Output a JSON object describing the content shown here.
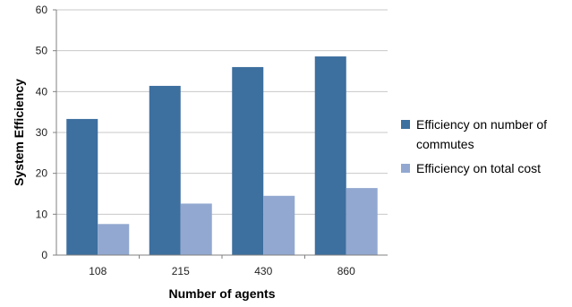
{
  "chart_data": {
    "type": "bar",
    "title": "",
    "xlabel": "Number of agents",
    "ylabel": "System Efficiency",
    "categories": [
      "108",
      "215",
      "430",
      "860"
    ],
    "series": [
      {
        "name": "Efficiency on number of commutes",
        "color": "#3D6F9F",
        "values": [
          33.3,
          41.4,
          46.0,
          48.6
        ]
      },
      {
        "name": "Efficiency on total cost",
        "color": "#92A8D0",
        "values": [
          7.6,
          12.6,
          14.5,
          16.4
        ]
      }
    ],
    "ylim": [
      0,
      60
    ],
    "yticks": [
      "0",
      "10",
      "20",
      "30",
      "40",
      "50",
      "60"
    ],
    "grid": true,
    "legend_position": "right"
  }
}
